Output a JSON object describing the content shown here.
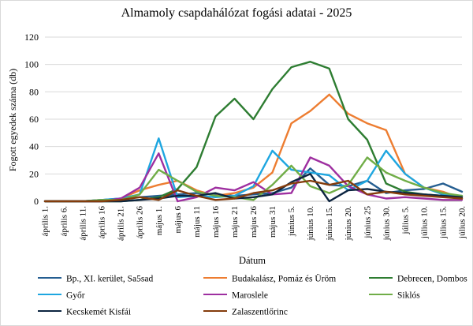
{
  "chart_data": {
    "type": "line",
    "title": "Almamoly csapdahálózat fogási adatai - 2025",
    "xlabel": "Dátum",
    "ylabel": "Fogott egyedek száma (db)",
    "ylim": [
      0,
      120
    ],
    "yticks": [
      0,
      20,
      40,
      60,
      80,
      100,
      120
    ],
    "grid": true,
    "legend_position": "bottom",
    "categories": [
      "április 1.",
      "április 6.",
      "április 11.",
      "április 16",
      "április 21.",
      "április 26",
      "május 1.",
      "május 6",
      "május 11",
      "május 16",
      "május 21",
      "május 26",
      "május 31",
      "június 5.",
      "június 10.",
      "június 15.",
      "június 20.",
      "június 25",
      "június 30.",
      "július 5.",
      "július 10.",
      "július 15.",
      "július 20."
    ],
    "series": [
      {
        "name": "Bp., XI. kerület, Sa5sad",
        "color": "#255e91",
        "values": [
          0,
          0,
          0,
          1,
          2,
          3,
          4,
          5,
          6,
          5,
          4,
          5,
          6,
          10,
          24,
          12,
          11,
          15,
          6,
          8,
          9,
          13,
          7
        ]
      },
      {
        "name": "Budakalász, Pomáz és Üröm",
        "color": "#ed7d31",
        "values": [
          0,
          0,
          0,
          0,
          2,
          8,
          12,
          15,
          8,
          4,
          6,
          10,
          21,
          57,
          66,
          78,
          64,
          57,
          52,
          20,
          10,
          7,
          2
        ]
      },
      {
        "name": "Debrecen, Dombos",
        "color": "#2e7d32",
        "values": [
          0,
          0,
          0,
          0,
          0,
          1,
          3,
          9,
          25,
          62,
          75,
          60,
          82,
          98,
          102,
          97,
          60,
          45,
          13,
          7,
          5,
          4,
          3
        ]
      },
      {
        "name": "Győr",
        "color": "#1ea6e0",
        "values": [
          0,
          0,
          0,
          1,
          2,
          5,
          46,
          3,
          4,
          3,
          4,
          11,
          37,
          23,
          21,
          19,
          8,
          15,
          37,
          20,
          10,
          5,
          4
        ]
      },
      {
        "name": "Maroslele",
        "color": "#9e2fa0",
        "values": [
          0,
          0,
          0,
          0,
          2,
          10,
          35,
          0,
          3,
          10,
          8,
          14,
          5,
          6,
          32,
          26,
          11,
          5,
          2,
          3,
          2,
          1,
          1
        ]
      },
      {
        "name": "Siklós",
        "color": "#70ad47",
        "values": [
          0,
          0,
          0,
          1,
          1,
          5,
          23,
          15,
          7,
          4,
          3,
          1,
          12,
          26,
          11,
          6,
          12,
          32,
          21,
          15,
          10,
          6,
          4
        ]
      },
      {
        "name": "Kecskemét Kisfái",
        "color": "#0c2440",
        "values": [
          0,
          0,
          0,
          0,
          0,
          1,
          2,
          4,
          4,
          6,
          2,
          3,
          5,
          14,
          20,
          0,
          8,
          9,
          7,
          6,
          5,
          4,
          3
        ]
      },
      {
        "name": "Zalaszentlőrinc",
        "color": "#843c0c",
        "values": [
          0,
          0,
          0,
          0,
          1,
          3,
          1,
          8,
          4,
          1,
          2,
          6,
          8,
          13,
          15,
          12,
          15,
          5,
          7,
          5,
          4,
          3,
          2
        ]
      }
    ]
  }
}
